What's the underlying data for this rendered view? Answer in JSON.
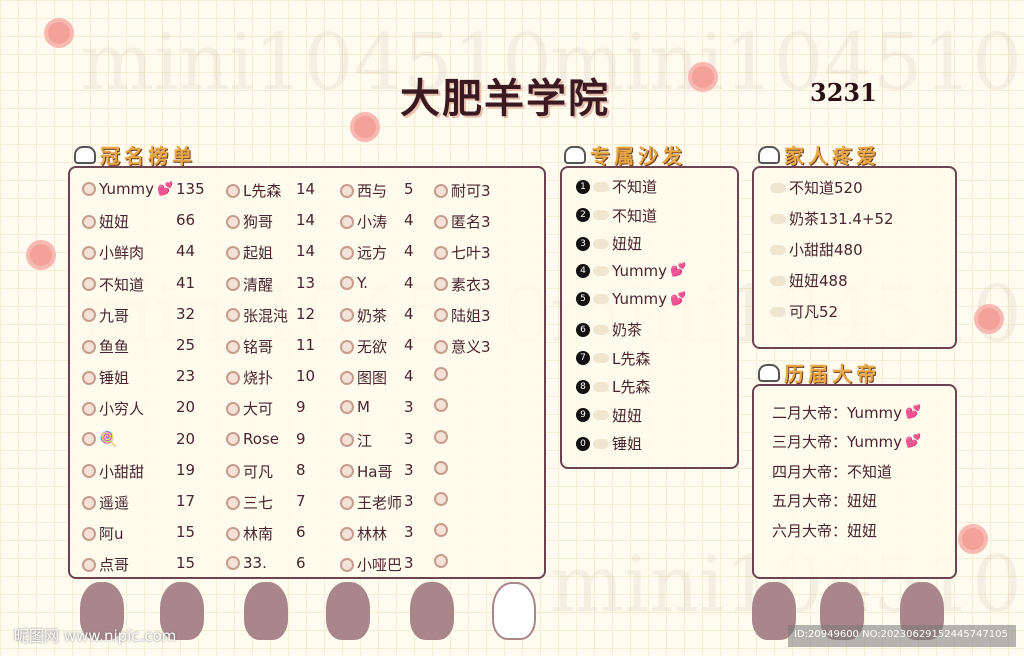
{
  "header": {
    "title": "大肥羊学院",
    "count": "3231",
    "watermark": "mini104510"
  },
  "ranking": {
    "title": "冠名榜单",
    "columns": [
      [
        [
          "Yummy",
          "135",
          true
        ],
        [
          "妞妞",
          "66"
        ],
        [
          "小鲜肉",
          "44"
        ],
        [
          "不知道",
          "41"
        ],
        [
          "九哥",
          "32"
        ],
        [
          "鱼鱼",
          "25"
        ],
        [
          "锤姐",
          "23"
        ],
        [
          "小穷人",
          "20"
        ],
        [
          "🍭",
          "20"
        ],
        [
          "小甜甜",
          "19"
        ],
        [
          "遥遥",
          "17"
        ],
        [
          "阿u",
          "15"
        ],
        [
          "点哥",
          "15"
        ]
      ],
      [
        [
          "L先森",
          "14"
        ],
        [
          "狗哥",
          "14"
        ],
        [
          "起姐",
          "14"
        ],
        [
          "清醒",
          "13"
        ],
        [
          "张混沌",
          "12"
        ],
        [
          "铭哥",
          "11"
        ],
        [
          "烧扑",
          "10"
        ],
        [
          "大可",
          "9"
        ],
        [
          "Rose",
          "9"
        ],
        [
          "可凡",
          "8"
        ],
        [
          "三七",
          "7"
        ],
        [
          "林南",
          "6"
        ],
        [
          "33.",
          "6"
        ]
      ],
      [
        [
          "西与",
          "5"
        ],
        [
          "小涛",
          "4"
        ],
        [
          "远方",
          "4"
        ],
        [
          "Y.",
          "4"
        ],
        [
          "奶茶",
          "4"
        ],
        [
          "无欲",
          "4"
        ],
        [
          "图图",
          "4"
        ],
        [
          "M",
          "3"
        ],
        [
          "江",
          "3"
        ],
        [
          "Ha哥",
          "3"
        ],
        [
          "王老师",
          "3"
        ],
        [
          "林林",
          "3"
        ],
        [
          "小哑巴",
          "3"
        ]
      ],
      [
        [
          "耐可3",
          ""
        ],
        [
          "匿名3",
          ""
        ],
        [
          "七叶3",
          ""
        ],
        [
          "素衣3",
          ""
        ],
        [
          "陆姐3",
          ""
        ],
        [
          "意义3",
          ""
        ],
        [
          "",
          ""
        ],
        [
          "",
          ""
        ],
        [
          "",
          ""
        ],
        [
          "",
          ""
        ],
        [
          "",
          ""
        ],
        [
          "",
          ""
        ],
        [
          "",
          ""
        ]
      ]
    ]
  },
  "sofa": {
    "title": "专属沙发",
    "items": [
      [
        "1",
        "不知道"
      ],
      [
        "2",
        "不知道"
      ],
      [
        "3",
        "妞妞"
      ],
      [
        "4",
        "Yummy",
        true
      ],
      [
        "5",
        "Yummy",
        true
      ],
      [
        "6",
        "奶茶"
      ],
      [
        "7",
        "L先森"
      ],
      [
        "8",
        "L先森"
      ],
      [
        "9",
        "妞妞"
      ],
      [
        "0",
        "锤姐"
      ]
    ]
  },
  "family": {
    "title": "家人疼爱",
    "items": [
      "不知道520",
      "奶茶131.4+52",
      "小甜甜480",
      "妞妞488",
      "可凡52"
    ]
  },
  "emperors": {
    "title": "历届大帝",
    "items": [
      [
        "二月大帝：Yummy",
        true
      ],
      [
        "三月大帝：Yummy",
        true
      ],
      [
        "四月大帝：不知道"
      ],
      [
        "五月大帝：妞妞"
      ],
      [
        "六月大帝：妞妞"
      ]
    ]
  },
  "footer": {
    "site": "昵图网 www.nipic.com",
    "id": "ID:20949600 NO:20230629152445747105"
  },
  "colors": {
    "border": "#6b4452",
    "heading": "#e8a848",
    "text": "#4a2430",
    "heart": "#e84a6a"
  }
}
